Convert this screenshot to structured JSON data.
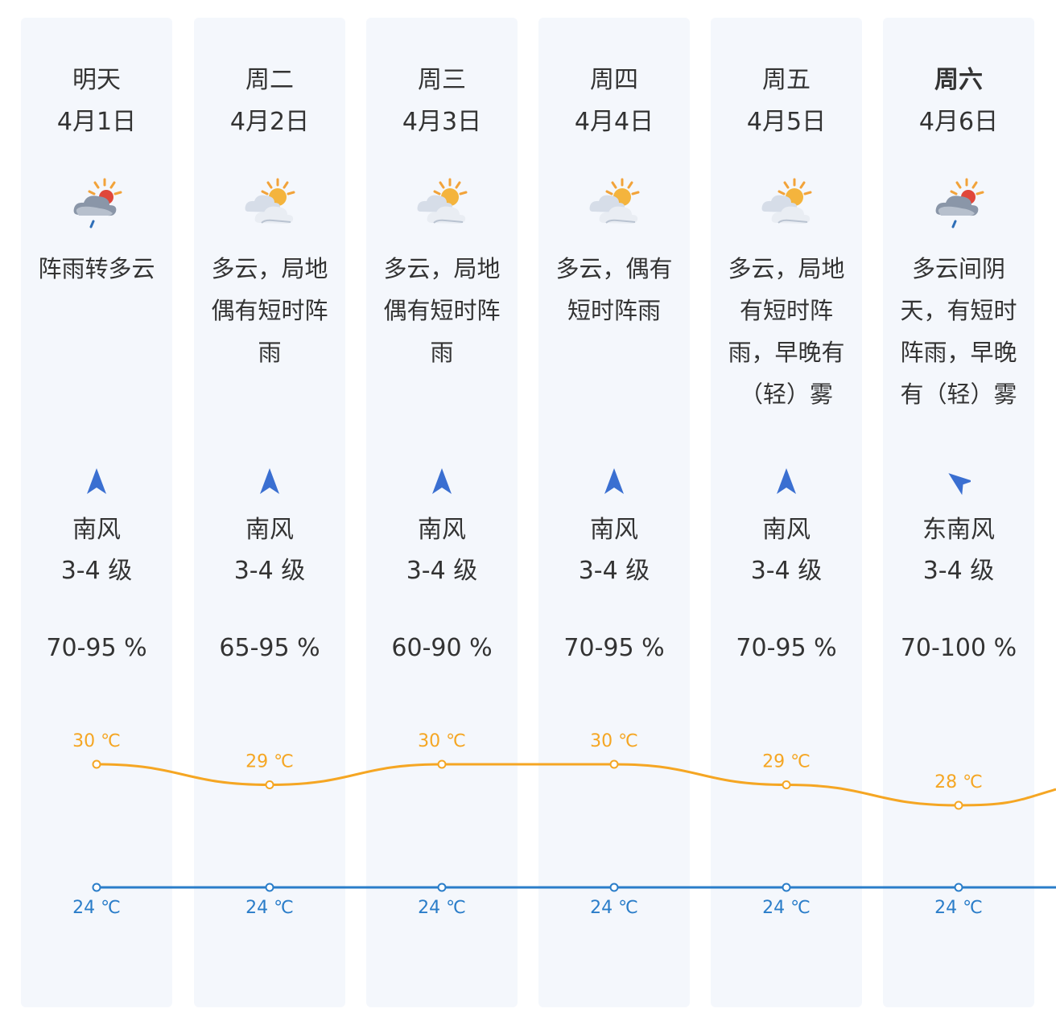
{
  "days": [
    {
      "name": "明天",
      "date": "4月1日",
      "icon": "rain-cloud-sun-icon",
      "weather": "阵雨转多云",
      "wind_dir": "南风",
      "wind_level": "3-4 级",
      "wind_arrow": "north-arrow-icon",
      "humidity": "70-95 %",
      "high": "30 ℃",
      "low": "24 ℃",
      "name_bold": false
    },
    {
      "name": "周二",
      "date": "4月2日",
      "icon": "partly-cloudy-icon",
      "weather": "多云，局地偶有短时阵雨",
      "wind_dir": "南风",
      "wind_level": "3-4 级",
      "wind_arrow": "north-arrow-icon",
      "humidity": "65-95 %",
      "high": "29 ℃",
      "low": "24 ℃",
      "name_bold": false
    },
    {
      "name": "周三",
      "date": "4月3日",
      "icon": "partly-cloudy-icon",
      "weather": "多云，局地偶有短时阵雨",
      "wind_dir": "南风",
      "wind_level": "3-4 级",
      "wind_arrow": "north-arrow-icon",
      "humidity": "60-90 %",
      "high": "30 ℃",
      "low": "24 ℃",
      "name_bold": false
    },
    {
      "name": "周四",
      "date": "4月4日",
      "icon": "partly-cloudy-icon",
      "weather": "多云，偶有短时阵雨",
      "wind_dir": "南风",
      "wind_level": "3-4 级",
      "wind_arrow": "north-arrow-icon",
      "humidity": "70-95 %",
      "high": "30 ℃",
      "low": "24 ℃",
      "name_bold": false
    },
    {
      "name": "周五",
      "date": "4月5日",
      "icon": "partly-cloudy-icon",
      "weather": "多云，局地有短时阵雨，早晚有（轻）雾",
      "wind_dir": "南风",
      "wind_level": "3-4 级",
      "wind_arrow": "north-arrow-icon",
      "humidity": "70-95 %",
      "high": "29 ℃",
      "low": "24 ℃",
      "name_bold": false
    },
    {
      "name": "周六",
      "date": "4月6日",
      "icon": "rain-cloud-sun-icon",
      "weather": "多云间阴天，有短时阵雨，早晚有（轻）雾",
      "wind_dir": "东南风",
      "wind_level": "3-4 级",
      "wind_arrow": "northwest-arrow-icon",
      "humidity": "70-100 %",
      "high": "28 ℃",
      "low": "24 ℃",
      "name_bold": true
    }
  ],
  "chart_data": {
    "type": "line",
    "categories": [
      "4月1日",
      "4月2日",
      "4月3日",
      "4月4日",
      "4月5日",
      "4月6日"
    ],
    "series": [
      {
        "values": [
          30,
          29,
          30,
          30,
          29,
          28
        ],
        "color": "#f5a623"
      },
      {
        "values": [
          24,
          24,
          24,
          24,
          24,
          24
        ],
        "color": "#2a7dc9"
      }
    ],
    "unit": "℃"
  },
  "colors": {
    "high_line": "#f5a623",
    "low_line": "#2a7dc9",
    "arrow": "#3a6fd1",
    "column_bg": "#f4f7fc"
  }
}
